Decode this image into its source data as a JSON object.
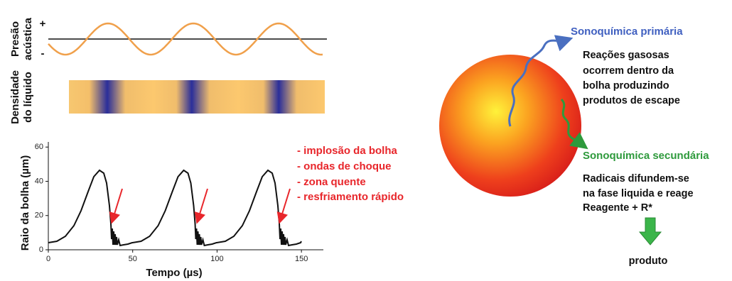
{
  "left": {
    "wave_label": [
      "Presão",
      "acústica"
    ],
    "plus": "+",
    "minus": "-",
    "density_label": [
      "Densidade",
      "do líquido"
    ],
    "chart": {
      "y_label": "Raio da bolha (µm)",
      "x_label": "Tempo  (µs)",
      "xlim": [
        0,
        163
      ],
      "ylim": [
        0,
        63
      ],
      "xticks": [
        0,
        50,
        100,
        150
      ],
      "yticks": [
        0,
        20,
        40,
        60
      ]
    },
    "notes": [
      "- implosão da bolha",
      "- ondas de choque",
      "- zona quente",
      "- resfriamento rápido"
    ]
  },
  "right": {
    "primary_title": "Sonoquímica primária",
    "primary_text": [
      "Reações gasosas",
      "ocorrem dentro da",
      "bolha produzindo",
      "produtos de escape"
    ],
    "secondary_title": "Sonoquímica secundária",
    "secondary_text": [
      "Radicais difundem-se",
      "na fase liquida e reage",
      "Reagente + R*"
    ],
    "product": "produto"
  }
}
